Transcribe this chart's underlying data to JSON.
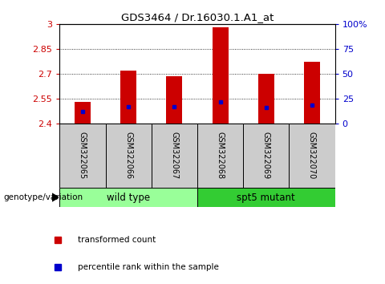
{
  "title": "GDS3464 / Dr.16030.1.A1_at",
  "samples": [
    "GSM322065",
    "GSM322066",
    "GSM322067",
    "GSM322068",
    "GSM322069",
    "GSM322070"
  ],
  "bar_tops": [
    2.53,
    2.72,
    2.685,
    2.98,
    2.7,
    2.775
  ],
  "blue_marks": [
    2.473,
    2.503,
    2.503,
    2.533,
    2.498,
    2.512
  ],
  "ymin": 2.4,
  "ymax": 3.0,
  "yticks": [
    2.4,
    2.55,
    2.7,
    2.85,
    3.0
  ],
  "ytick_labels": [
    "2.4",
    "2.55",
    "2.7",
    "2.85",
    "3"
  ],
  "right_yticks": [
    0,
    25,
    50,
    75,
    100
  ],
  "right_ytick_labels": [
    "0",
    "25",
    "50",
    "75",
    "100%"
  ],
  "bar_color": "#cc0000",
  "blue_color": "#0000cc",
  "bar_width": 0.35,
  "groups": [
    {
      "label": "wild type",
      "samples": [
        0,
        1,
        2
      ],
      "color": "#99ff99"
    },
    {
      "label": "spt5 mutant",
      "samples": [
        3,
        4,
        5
      ],
      "color": "#33cc33"
    }
  ],
  "group_label": "genotype/variation",
  "legend_items": [
    {
      "color": "#cc0000",
      "label": "transformed count"
    },
    {
      "color": "#0000cc",
      "label": "percentile rank within the sample"
    }
  ],
  "tick_color_left": "#cc0000",
  "tick_color_right": "#0000cc",
  "sample_bg": "#cccccc"
}
